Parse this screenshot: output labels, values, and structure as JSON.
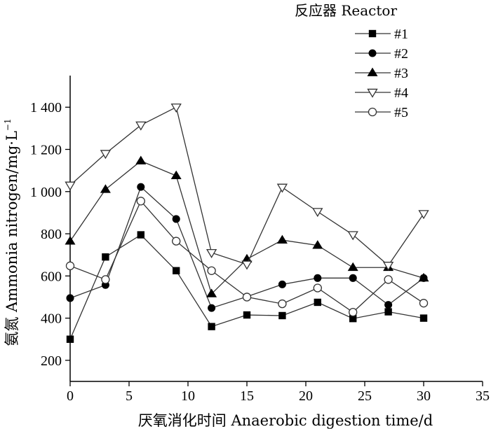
{
  "chart_data": {
    "type": "line",
    "xlabel": "厌氧消化时间 Anaerobic digestion time/d",
    "ylabel": "氨氮 Ammonia nitrogen/mg·L",
    "ylabel_superscript": "−1",
    "xlim": [
      0,
      35
    ],
    "ylim": [
      100,
      1550
    ],
    "xticks": [
      0,
      5,
      10,
      15,
      20,
      25,
      30,
      35
    ],
    "xtick_labels": [
      "0",
      "5",
      "10",
      "15",
      "20",
      "25",
      "30",
      "35"
    ],
    "yticks": [
      200,
      400,
      600,
      800,
      1000,
      1200,
      1400
    ],
    "ytick_labels": [
      "200",
      "400",
      "600",
      "800",
      "1 000",
      "1 200",
      "1 400"
    ],
    "grid": false,
    "legend_title": "反应器 Reactor",
    "legend_position": "top-right",
    "line_color": "#333333",
    "x": [
      0,
      3,
      6,
      9,
      12,
      15,
      18,
      21,
      24,
      27,
      30
    ],
    "series": [
      {
        "name": "#1",
        "marker": "square",
        "values": [
          300,
          690,
          795,
          625,
          360,
          415,
          412,
          475,
          398,
          430,
          400
        ]
      },
      {
        "name": "#2",
        "marker": "circle-filled",
        "values": [
          495,
          557,
          1022,
          870,
          448,
          502,
          560,
          590,
          590,
          463,
          590
        ]
      },
      {
        "name": "#3",
        "marker": "triangle-up",
        "values": [
          765,
          1010,
          1145,
          1075,
          515,
          680,
          770,
          745,
          640,
          640,
          590
        ]
      },
      {
        "name": "#4",
        "marker": "triangle-down-open",
        "values": [
          1030,
          1180,
          1315,
          1400,
          710,
          655,
          1020,
          905,
          795,
          650,
          895
        ]
      },
      {
        "name": "#5",
        "marker": "circle-open",
        "values": [
          648,
          583,
          955,
          765,
          625,
          500,
          468,
          543,
          428,
          583,
          471
        ]
      }
    ]
  }
}
